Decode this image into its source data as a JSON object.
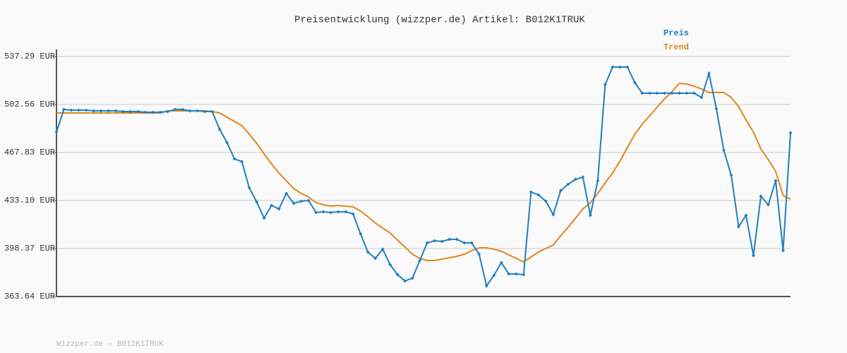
{
  "chart_data": {
    "type": "line",
    "title": "Preisentwicklung (wizzper.de) Artikel: B012K1TRUK",
    "footer": "Wizzper.de - B012K1TRUK",
    "ylim": [
      363.64,
      537.29
    ],
    "yticks": [
      {
        "value": 363.64,
        "label": "363.64 EUR"
      },
      {
        "value": 398.37,
        "label": "398.37 EUR"
      },
      {
        "value": 433.1,
        "label": "433.10 EUR"
      },
      {
        "value": 467.83,
        "label": "467.83 EUR"
      },
      {
        "value": 502.56,
        "label": "502.56 EUR"
      },
      {
        "value": 537.29,
        "label": "537.29 EUR"
      }
    ],
    "grid": true,
    "legend": "top-right",
    "series": [
      {
        "name": "Preis",
        "color": "#1f80c0",
        "markers": true,
        "values": [
          482.64,
          498.99,
          498.48,
          498.48,
          498.48,
          497.96,
          497.96,
          497.96,
          497.96,
          497.45,
          497.45,
          497.45,
          496.94,
          496.94,
          496.94,
          497.45,
          498.99,
          498.99,
          497.96,
          497.96,
          497.45,
          497.45,
          484.69,
          474.98,
          463.23,
          461.19,
          442.29,
          432.08,
          420.33,
          429.53,
          426.97,
          438.21,
          431.06,
          432.59,
          433.1,
          424.42,
          424.93,
          424.42,
          424.93,
          424.93,
          423.4,
          409.1,
          395.82,
          391.22,
          397.86,
          386.62,
          379.47,
          374.88,
          376.92,
          389.69,
          402.46,
          403.99,
          403.48,
          405.01,
          405.01,
          402.46,
          402.46,
          394.28,
          371.3,
          378.96,
          388.16,
          379.98,
          379.98,
          379.47,
          439.23,
          437.19,
          432.59,
          422.89,
          440.25,
          444.85,
          448.42,
          449.96,
          422.38,
          447.4,
          516.86,
          529.63,
          529.63,
          529.63,
          518.39,
          510.73,
          510.73,
          510.73,
          510.73,
          510.73,
          510.73,
          510.73,
          510.73,
          507.67,
          525.03,
          499.5,
          469.36,
          451.49,
          414.2,
          422.38,
          393.26,
          436.17,
          430.04,
          447.4,
          396.84,
          482.13
        ]
      },
      {
        "name": "Trend",
        "color": "#e0861e",
        "markers": false,
        "values": [
          496.43,
          496.43,
          496.43,
          496.43,
          496.43,
          496.43,
          496.43,
          496.43,
          496.43,
          496.43,
          496.43,
          496.43,
          496.43,
          496.43,
          496.43,
          497.96,
          497.96,
          497.96,
          497.96,
          497.96,
          497.96,
          497.45,
          496.43,
          493.37,
          490.3,
          487.24,
          481.11,
          474.47,
          466.81,
          459.66,
          453.02,
          447.4,
          441.78,
          438.21,
          435.65,
          431.57,
          430.04,
          429.01,
          429.53,
          429.01,
          428.5,
          425.44,
          421.35,
          416.76,
          413.18,
          409.61,
          404.5,
          399.39,
          394.28,
          391.22,
          389.69,
          389.69,
          390.71,
          391.73,
          392.75,
          394.28,
          396.84,
          398.88,
          398.88,
          397.86,
          396.33,
          393.77,
          391.22,
          388.67,
          392.24,
          395.82,
          398.37,
          400.92,
          407.56,
          413.69,
          420.33,
          426.97,
          431.57,
          438.21,
          445.87,
          453.02,
          461.7,
          471.41,
          481.11,
          488.26,
          494.39,
          500.52,
          506.65,
          511.75,
          517.88,
          517.37,
          515.84,
          513.8,
          511.24,
          511.24,
          511.24,
          507.67,
          501.03,
          491.33,
          482.64,
          470.38,
          462.72,
          454.04,
          436.68,
          434.12
        ]
      }
    ]
  }
}
